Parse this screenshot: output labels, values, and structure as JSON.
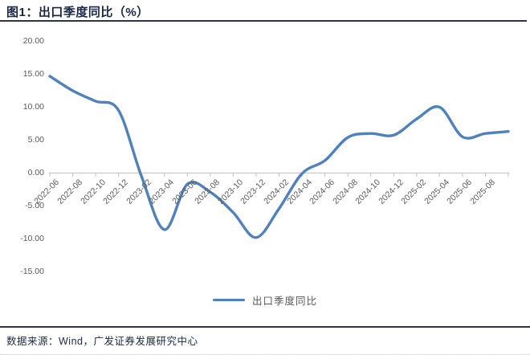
{
  "title": "图1：出口季度同比（%）",
  "source_note": "数据来源：Wind，广发证券发展研究中心",
  "legend": {
    "label": "出口季度同比"
  },
  "colors": {
    "line": "#4F81BD",
    "title_text": "#1B2844",
    "rule": "#2E3440",
    "axis_text": "#595959",
    "axis_line": "#BFBFBF"
  },
  "chart_data": {
    "type": "line",
    "title": "出口季度同比（%）",
    "xlabel": "",
    "ylabel": "",
    "ylim": [
      -15,
      20
    ],
    "grid": false,
    "legend_position": "bottom-center",
    "y_tick_labels": [
      "20.00",
      "15.00",
      "10.00",
      "5.00",
      "0.00",
      "-5.00",
      "-10.00",
      "-15.00"
    ],
    "categories": [
      "2022-06",
      "2022-08",
      "2022-10",
      "2022-12",
      "2023-02",
      "2023-04",
      "2023-06",
      "2023-08",
      "2023-10",
      "2023-12",
      "2024-02",
      "2024-04",
      "2024-06",
      "2024-08",
      "2024-10",
      "2024-12",
      "2025-02",
      "2025-04",
      "2025-06",
      "2025-08"
    ],
    "series": [
      {
        "name": "出口季度同比",
        "values": [
          14.7,
          12.5,
          10.9,
          9.5,
          -0.5,
          -8.6,
          -1.7,
          -2.9,
          -6.0,
          -9.8,
          -5.4,
          -0.1,
          1.9,
          5.4,
          6.0,
          5.75,
          8.2,
          10.0,
          5.5,
          6.0,
          6.3
        ],
        "note": "series has one trailing unlabeled point; the plotted line extends one tick interval beyond the last x-axis label"
      }
    ]
  }
}
